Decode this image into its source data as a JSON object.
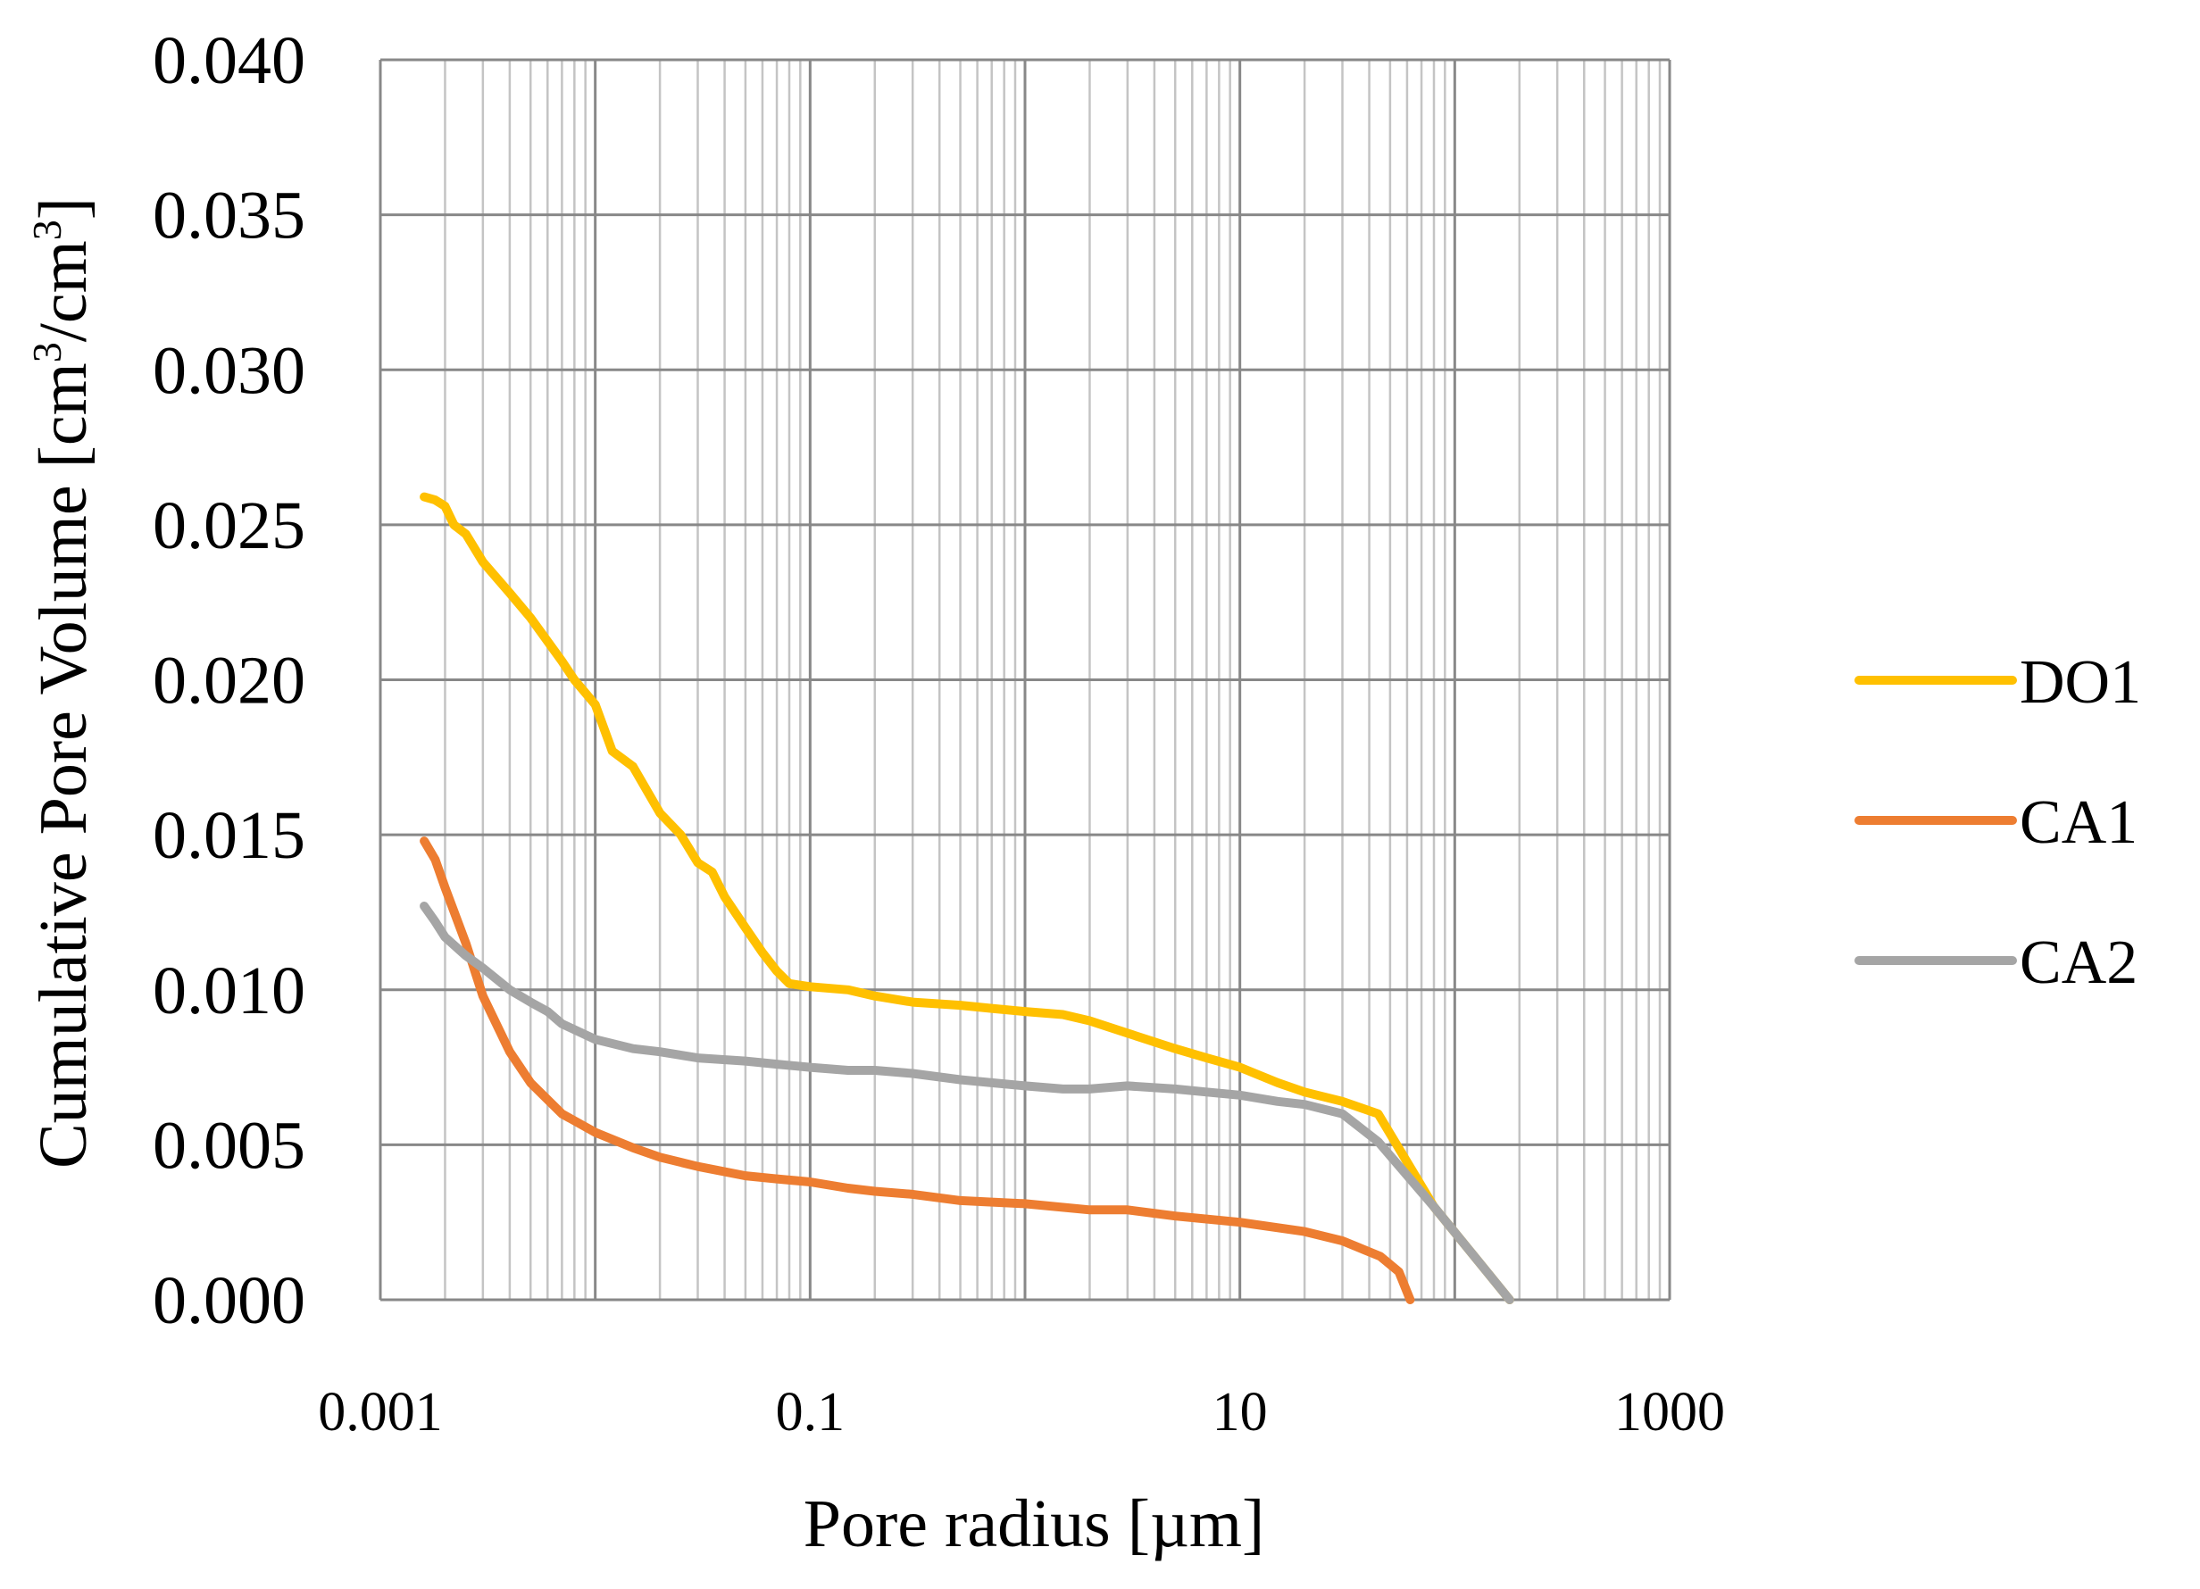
{
  "chart_data": {
    "type": "line",
    "title": "",
    "xlabel": "Pore radius [µm]",
    "ylabel_main": "Cumulative Pore Volume [cm",
    "ylabel_sup1": "3",
    "ylabel_mid": "/cm",
    "ylabel_sup2": "3",
    "ylabel_end": "]",
    "xscale": "log",
    "xlim": [
      0.001,
      1000
    ],
    "ylim": [
      0,
      0.04
    ],
    "x_ticks": [
      0.001,
      0.1,
      10,
      1000
    ],
    "x_tick_labels": [
      "0.001",
      "0.1",
      "10",
      "1000"
    ],
    "y_ticks": [
      0.0,
      0.005,
      0.01,
      0.015,
      0.02,
      0.025,
      0.03,
      0.035,
      0.04
    ],
    "y_tick_labels": [
      "0.000",
      "0.005",
      "0.010",
      "0.015",
      "0.020",
      "0.025",
      "0.030",
      "0.035",
      "0.040"
    ],
    "grid": true,
    "legend_position": "right",
    "series": [
      {
        "name": "DO1",
        "color": "#FFC000",
        "x": [
          0.0016,
          0.0018,
          0.002,
          0.0022,
          0.0025,
          0.003,
          0.004,
          0.005,
          0.007,
          0.008,
          0.01,
          0.012,
          0.015,
          0.02,
          0.025,
          0.03,
          0.035,
          0.04,
          0.05,
          0.06,
          0.07,
          0.08,
          0.1,
          0.15,
          0.2,
          0.3,
          0.5,
          0.7,
          1.0,
          1.5,
          2.0,
          3.0,
          5.0,
          7.0,
          10.0,
          15.0,
          20.0,
          30.0,
          44.0,
          80.0,
          180.0
        ],
        "values": [
          0.0259,
          0.0258,
          0.0256,
          0.025,
          0.0247,
          0.0238,
          0.0228,
          0.022,
          0.0206,
          0.02,
          0.0192,
          0.0177,
          0.0172,
          0.0157,
          0.015,
          0.0141,
          0.0138,
          0.013,
          0.012,
          0.0112,
          0.0106,
          0.0102,
          0.0101,
          0.01,
          0.0098,
          0.0096,
          0.0095,
          0.0094,
          0.0093,
          0.0092,
          0.009,
          0.0086,
          0.0081,
          0.0078,
          0.0075,
          0.007,
          0.0067,
          0.0064,
          0.006,
          0.003,
          0.0
        ]
      },
      {
        "name": "CA1",
        "color": "#ED7D31",
        "x": [
          0.0016,
          0.0018,
          0.002,
          0.0025,
          0.003,
          0.004,
          0.005,
          0.007,
          0.01,
          0.015,
          0.02,
          0.03,
          0.05,
          0.07,
          0.1,
          0.15,
          0.2,
          0.3,
          0.5,
          1.0,
          2.0,
          3.0,
          5.0,
          10.0,
          20.0,
          30.0,
          45.0,
          55.0,
          62.0
        ],
        "values": [
          0.0148,
          0.0142,
          0.0133,
          0.0115,
          0.0098,
          0.008,
          0.007,
          0.006,
          0.0054,
          0.0049,
          0.0046,
          0.0043,
          0.004,
          0.0039,
          0.0038,
          0.0036,
          0.0035,
          0.0034,
          0.0032,
          0.0031,
          0.0029,
          0.0029,
          0.0027,
          0.0025,
          0.0022,
          0.0019,
          0.0014,
          0.0009,
          0.0
        ]
      },
      {
        "name": "CA2",
        "color": "#A5A5A5",
        "x": [
          0.0016,
          0.0018,
          0.002,
          0.0025,
          0.003,
          0.004,
          0.005,
          0.006,
          0.007,
          0.01,
          0.015,
          0.02,
          0.03,
          0.05,
          0.07,
          0.1,
          0.15,
          0.2,
          0.3,
          0.5,
          0.7,
          1.0,
          1.5,
          2.0,
          3.0,
          5.0,
          7.0,
          10.0,
          15.0,
          20.0,
          30.0,
          44.0,
          80.0,
          180.0
        ],
        "values": [
          0.0127,
          0.0122,
          0.0117,
          0.0111,
          0.0107,
          0.01,
          0.0096,
          0.0093,
          0.0089,
          0.0084,
          0.0081,
          0.008,
          0.0078,
          0.0077,
          0.0076,
          0.0075,
          0.0074,
          0.0074,
          0.0073,
          0.0071,
          0.007,
          0.0069,
          0.0068,
          0.0068,
          0.0069,
          0.0068,
          0.0067,
          0.0066,
          0.0064,
          0.0063,
          0.006,
          0.0051,
          0.003,
          0.0
        ]
      }
    ]
  }
}
